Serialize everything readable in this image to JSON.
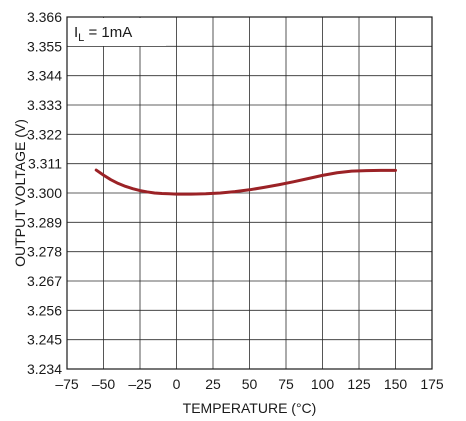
{
  "chart_data": {
    "type": "line",
    "title": "",
    "xlabel": "TEMPERATURE (°C)",
    "ylabel": "OUTPUT VOLTAGE (V)",
    "xlim": [
      -75,
      175
    ],
    "ylim": [
      3.234,
      3.366
    ],
    "x_ticks": [
      "–75",
      "–50",
      "–25",
      "0",
      "25",
      "50",
      "75",
      "100",
      "125",
      "150",
      "175"
    ],
    "y_ticks": [
      "3.366",
      "3.355",
      "3.344",
      "3.333",
      "3.322",
      "3.311",
      "3.300",
      "3.289",
      "3.278",
      "3.267",
      "3.256",
      "3.245",
      "3.234"
    ],
    "grid": true,
    "annotation": {
      "main": "I",
      "sub": "L",
      "rest": " = 1mA"
    },
    "series_color": "#9b2226",
    "series": [
      {
        "x": [
          -55,
          -50,
          -45,
          -40,
          -35,
          -30,
          -25,
          -20,
          -15,
          -10,
          -5,
          0,
          10,
          20,
          30,
          40,
          50,
          60,
          70,
          80,
          90,
          100,
          110,
          120,
          130,
          140,
          150
        ],
        "y": [
          3.3086,
          3.3067,
          3.305,
          3.3036,
          3.3025,
          3.3016,
          3.3009,
          3.3004,
          3.3,
          3.2998,
          3.2997,
          3.2996,
          3.2996,
          3.2997,
          3.3,
          3.3005,
          3.3012,
          3.3021,
          3.3031,
          3.3042,
          3.3054,
          3.3066,
          3.3076,
          3.3082,
          3.3084,
          3.3085,
          3.3085
        ]
      }
    ]
  }
}
